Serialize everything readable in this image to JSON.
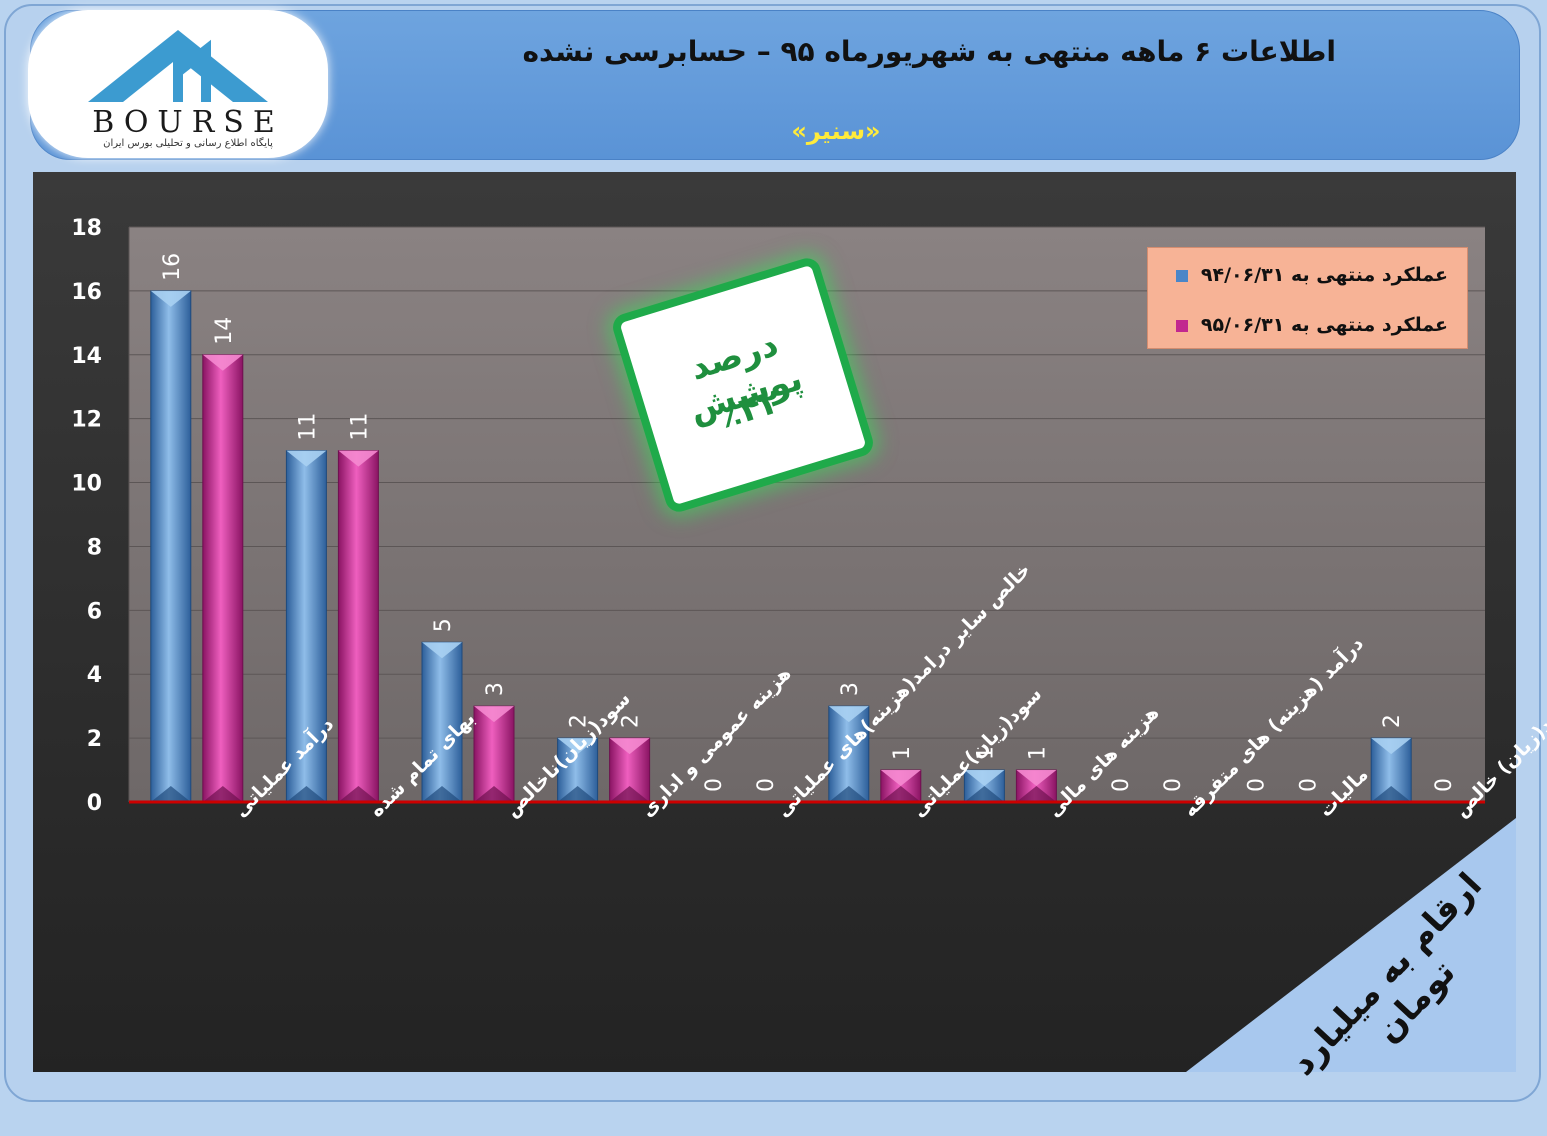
{
  "header": {
    "title": "اطلاعات ۶  ماهه منتهی به شهریورماه ۹۵ – حسابرسی نشده",
    "subtitle": "«سنیر»",
    "logo_text": "BOURSE",
    "logo_subtitle": "پایگاه اطلاع رسانی و تحلیلی بورس ایران"
  },
  "badge": {
    "line1": "درصد پوشش",
    "line2": "٪۴۲"
  },
  "corner_note": "ارقام به میلیارد تومان",
  "colors": {
    "series1": "#4a86c8",
    "series2": "#c2288f",
    "baseline": "#cc0000",
    "badge_border": "#1faa4a",
    "legend_bg": "#f7b396"
  },
  "chart_data": {
    "type": "bar",
    "categories": [
      "درآمد عملیاتی",
      "بهای تمام شده",
      "سود(زیان)ناخالص",
      "هزینه عمومی و اداری",
      "خالص سایر درامد(هزینه)های عملیاتی",
      "سود(زیان)عملیاتی",
      "هزینه های مالی",
      "درآمد (هزینه) های متفرقه",
      "مالیات",
      "سود(زیان) خالص"
    ],
    "series": [
      {
        "name": "عملکرد منتهی به  ۹۴/۰۶/۳۱",
        "values": [
          16,
          11,
          5,
          2,
          0,
          3,
          1,
          0,
          0,
          2
        ]
      },
      {
        "name": "عملکرد منتهی به  ۹۵/۰۶/۳۱",
        "values": [
          14,
          11,
          3,
          2,
          0,
          1,
          1,
          0,
          0,
          0
        ]
      }
    ],
    "ylim": [
      0,
      18
    ],
    "yticks": [
      0,
      2,
      4,
      6,
      8,
      10,
      12,
      14,
      16,
      18
    ],
    "grid": true,
    "legend_position": "top-right"
  }
}
